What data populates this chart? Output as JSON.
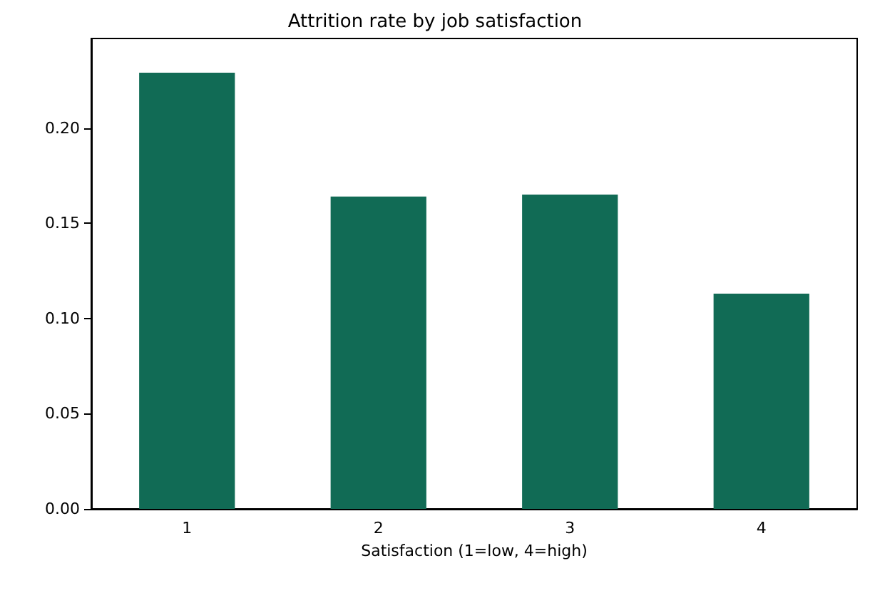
{
  "chart_data": {
    "type": "bar",
    "title": "Attrition rate by job satisfaction",
    "xlabel": "Satisfaction (1=low, 4=high)",
    "categories": [
      "1",
      "2",
      "3",
      "4"
    ],
    "values": [
      0.229,
      0.164,
      0.165,
      0.113
    ],
    "color": "#116b55",
    "ylim": [
      0,
      0.247
    ],
    "yticks": [
      {
        "value": 0,
        "label": "0.00"
      },
      {
        "value": 0.05,
        "label": "0.05"
      },
      {
        "value": 0.1,
        "label": "0.10"
      },
      {
        "value": 0.15,
        "label": "0.15"
      },
      {
        "value": 0.2,
        "label": "0.20"
      }
    ],
    "orientation": "vertical"
  }
}
